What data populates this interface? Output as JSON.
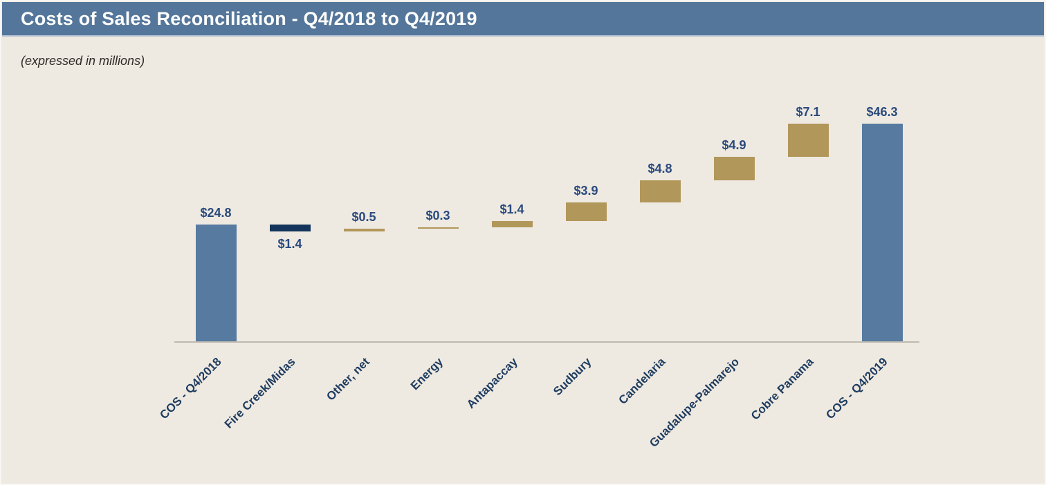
{
  "header": {
    "title": "Costs of Sales Reconciliation - Q4/2018 to Q4/2019"
  },
  "subtitle": "(expressed in millions)",
  "chart_data": {
    "type": "bar",
    "subtype": "waterfall",
    "title": "Costs of Sales Reconciliation - Q4/2018 to Q4/2019",
    "subtitle": "(expressed in millions)",
    "unit": "millions of dollars",
    "grid": false,
    "legend": "none",
    "y_axis_visible": false,
    "x_axis_baseline_value": 0,
    "y_range": [
      0,
      46.3
    ],
    "categories": [
      "COS - Q4/2018",
      "Fire Creek/Midas",
      "Other, net",
      "Energy",
      "Antapaccay",
      "Sudbury",
      "Candelaria",
      "Guadalupe-Palmarejo",
      "Cobre Panama",
      "COS - Q4/2019"
    ],
    "points": [
      {
        "category": "COS - Q4/2018",
        "value": 24.8,
        "role": "total",
        "label": "$24.8",
        "label_position": "above",
        "segment_start": 0,
        "segment_end": 24.8
      },
      {
        "category": "Fire Creek/Midas",
        "value": -1.4,
        "role": "decrease",
        "label": "$1.4",
        "label_position": "below",
        "segment_start": 24.8,
        "segment_end": 23.4
      },
      {
        "category": "Other, net",
        "value": 0.5,
        "role": "increase",
        "label": "$0.5",
        "label_position": "above",
        "segment_start": 23.4,
        "segment_end": 23.9
      },
      {
        "category": "Energy",
        "value": 0.3,
        "role": "increase",
        "label": "$0.3",
        "label_position": "above",
        "segment_start": 23.9,
        "segment_end": 24.2
      },
      {
        "category": "Antapaccay",
        "value": 1.4,
        "role": "increase",
        "label": "$1.4",
        "label_position": "above",
        "segment_start": 24.2,
        "segment_end": 25.6
      },
      {
        "category": "Sudbury",
        "value": 3.9,
        "role": "increase",
        "label": "$3.9",
        "label_position": "above",
        "segment_start": 25.6,
        "segment_end": 29.5
      },
      {
        "category": "Candelaria",
        "value": 4.8,
        "role": "increase",
        "label": "$4.8",
        "label_position": "above",
        "segment_start": 29.5,
        "segment_end": 34.3
      },
      {
        "category": "Guadalupe-Palmarejo",
        "value": 4.9,
        "role": "increase",
        "label": "$4.9",
        "label_position": "above",
        "segment_start": 34.3,
        "segment_end": 39.2
      },
      {
        "category": "Cobre Panama",
        "value": 7.1,
        "role": "increase",
        "label": "$7.1",
        "label_position": "above",
        "segment_start": 39.2,
        "segment_end": 46.3
      },
      {
        "category": "COS - Q4/2019",
        "value": 46.3,
        "role": "total",
        "label": "$46.3",
        "label_position": "above",
        "segment_start": 0,
        "segment_end": 46.3
      }
    ],
    "colors": {
      "total_bar": "#567AA0",
      "increase_bar": "#B2975A",
      "decrease_bar": "#14355B",
      "value_label_text": "#2A4A7D",
      "category_label_text": "#1E3C5F",
      "axis_line": "#BEBAB1",
      "title_bar_background": "#54769B",
      "title_text": "#FDFDFC",
      "page_background": "#EEE9E1"
    }
  }
}
